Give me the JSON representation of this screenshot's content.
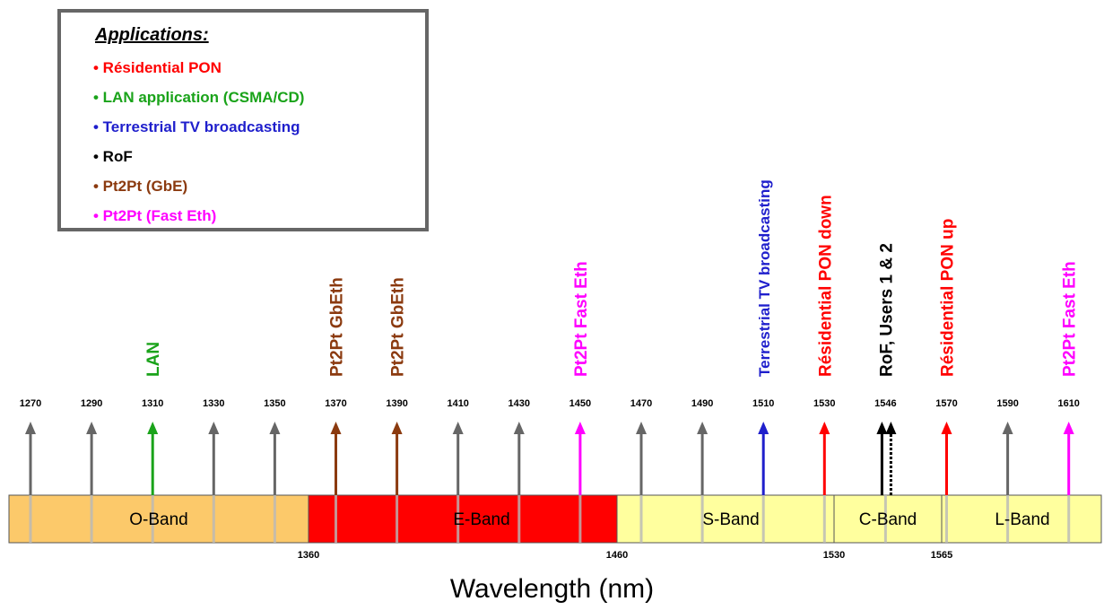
{
  "legend": {
    "title": "Applications:",
    "items": [
      {
        "label": "• Résidential PON",
        "color": "#ff0000"
      },
      {
        "label": "• LAN application (CSMA/CD)",
        "color": "#1aa31a"
      },
      {
        "label": "• Terrestrial TV broadcasting",
        "color": "#1f1fcc"
      },
      {
        "label": "• RoF",
        "color": "#000000"
      },
      {
        "label": "• Pt2Pt (GbE)",
        "color": "#8b3a0f"
      },
      {
        "label": "• Pt2Pt (Fast Eth)",
        "color": "#ff00ff"
      }
    ]
  },
  "channels": [
    {
      "wavelength": 1270,
      "tick_label": "1270",
      "color": "#666666",
      "label": ""
    },
    {
      "wavelength": 1290,
      "tick_label": "1290",
      "color": "#666666",
      "label": ""
    },
    {
      "wavelength": 1310,
      "tick_label": "1310",
      "color": "#1aa31a",
      "label": "LAN"
    },
    {
      "wavelength": 1330,
      "tick_label": "1330",
      "color": "#666666",
      "label": ""
    },
    {
      "wavelength": 1350,
      "tick_label": "1350",
      "color": "#666666",
      "label": ""
    },
    {
      "wavelength": 1370,
      "tick_label": "1370",
      "color": "#8b3a0f",
      "label": "Pt2Pt GbEth"
    },
    {
      "wavelength": 1390,
      "tick_label": "1390",
      "color": "#8b3a0f",
      "label": "Pt2Pt GbEth"
    },
    {
      "wavelength": 1410,
      "tick_label": "1410",
      "color": "#666666",
      "label": ""
    },
    {
      "wavelength": 1430,
      "tick_label": "1430",
      "color": "#666666",
      "label": ""
    },
    {
      "wavelength": 1450,
      "tick_label": "1450",
      "color": "#ff00ff",
      "label": "Pt2Pt Fast Eth"
    },
    {
      "wavelength": 1470,
      "tick_label": "1470",
      "color": "#666666",
      "label": ""
    },
    {
      "wavelength": 1490,
      "tick_label": "1490",
      "color": "#666666",
      "label": ""
    },
    {
      "wavelength": 1510,
      "tick_label": "1510",
      "color": "#1f1fcc",
      "label": "Terrestrial TV broadcasting"
    },
    {
      "wavelength": 1530,
      "tick_label": "1530",
      "color": "#ff0000",
      "label": "Résidential PON down"
    },
    {
      "wavelength": 1546,
      "tick_label": "1546",
      "color": "#000000",
      "label": "RoF, Users 1 & 2",
      "dual": true
    },
    {
      "wavelength": 1570,
      "tick_label": "1570",
      "color": "#ff0000",
      "label": "Résidential PON up"
    },
    {
      "wavelength": 1590,
      "tick_label": "1590",
      "color": "#666666",
      "label": ""
    },
    {
      "wavelength": 1610,
      "tick_label": "1610",
      "color": "#ff00ff",
      "label": "Pt2Pt Fast Eth"
    }
  ],
  "bands": [
    {
      "name": "O-Band",
      "start": 1260,
      "end": 1360,
      "color": "#fcc96a"
    },
    {
      "name": "E-Band",
      "start": 1360,
      "end": 1460,
      "color": "#ff0000"
    },
    {
      "name": "S-Band",
      "start": 1460,
      "end": 1530,
      "color": "#ffff9e"
    },
    {
      "name": "C-Band",
      "start": 1530,
      "end": 1565,
      "color": "#ffff9e"
    },
    {
      "name": "L-Band",
      "start": 1565,
      "end": 1625,
      "color": "#ffff9e"
    }
  ],
  "band_edges": [
    {
      "wavelength": 1360,
      "label": "1360"
    },
    {
      "wavelength": 1460,
      "label": "1460"
    },
    {
      "wavelength": 1530,
      "label": "1530"
    },
    {
      "wavelength": 1565,
      "label": "1565"
    }
  ],
  "axis_label": "Wavelength (nm)"
}
